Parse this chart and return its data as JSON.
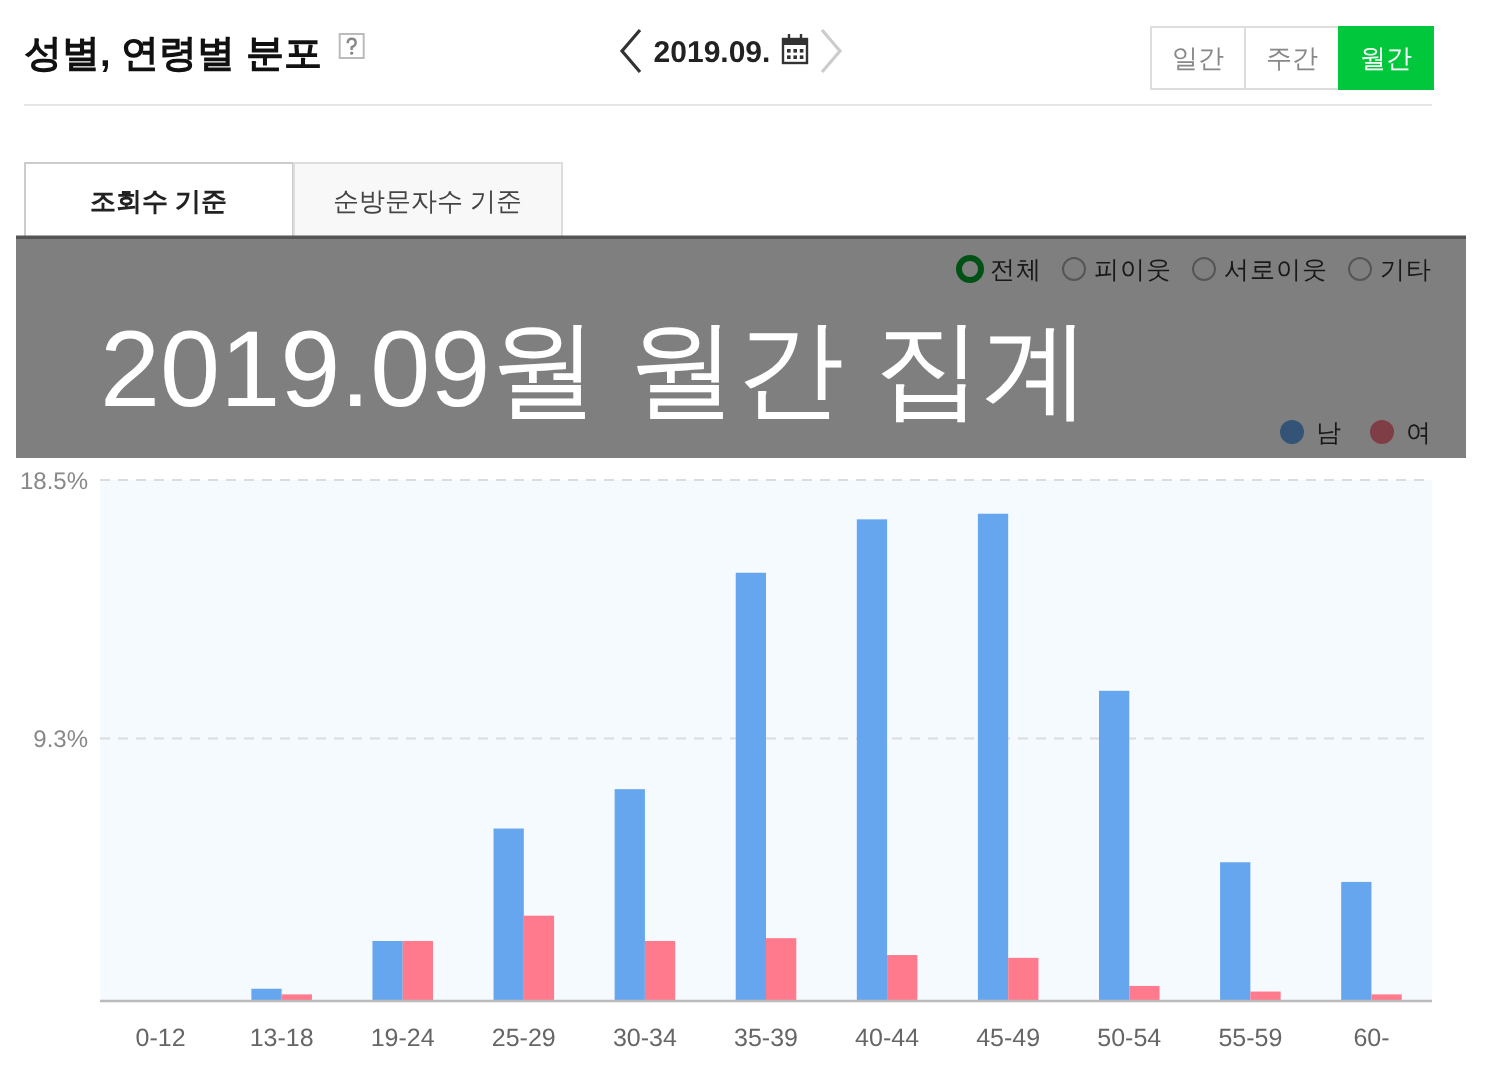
{
  "chart_data": {
    "type": "bar",
    "title": "성별, 연령별 분포",
    "subtitle": "2019.09.",
    "categories": [
      "0-12",
      "13-18",
      "19-24",
      "25-29",
      "30-34",
      "35-39",
      "40-44",
      "45-49",
      "50-54",
      "55-59",
      "60-"
    ],
    "series": [
      {
        "name": "남",
        "color": "#66a6ee",
        "values": [
          0,
          0.4,
          2.1,
          6.1,
          7.5,
          15.2,
          17.1,
          17.3,
          11.0,
          4.9,
          4.2
        ]
      },
      {
        "name": "여",
        "color": "#ff7a8c",
        "values": [
          0,
          0.2,
          2.1,
          3.0,
          2.1,
          2.2,
          1.6,
          1.5,
          0.5,
          0.3,
          0.2
        ]
      }
    ],
    "ylim": [
      0,
      18.5
    ],
    "yticks": [
      {
        "value": 9.3,
        "label": "9.3%"
      },
      {
        "value": 18.5,
        "label": "18.5%"
      }
    ],
    "grid": "y",
    "legend": "top right",
    "annotations": [
      "일간",
      "주간",
      "월간",
      "조회수 기준",
      "순방문자수 기준",
      "전체",
      "피이웃",
      "서로이웃",
      "기타",
      "2019.09월 월간 집계"
    ]
  }
}
